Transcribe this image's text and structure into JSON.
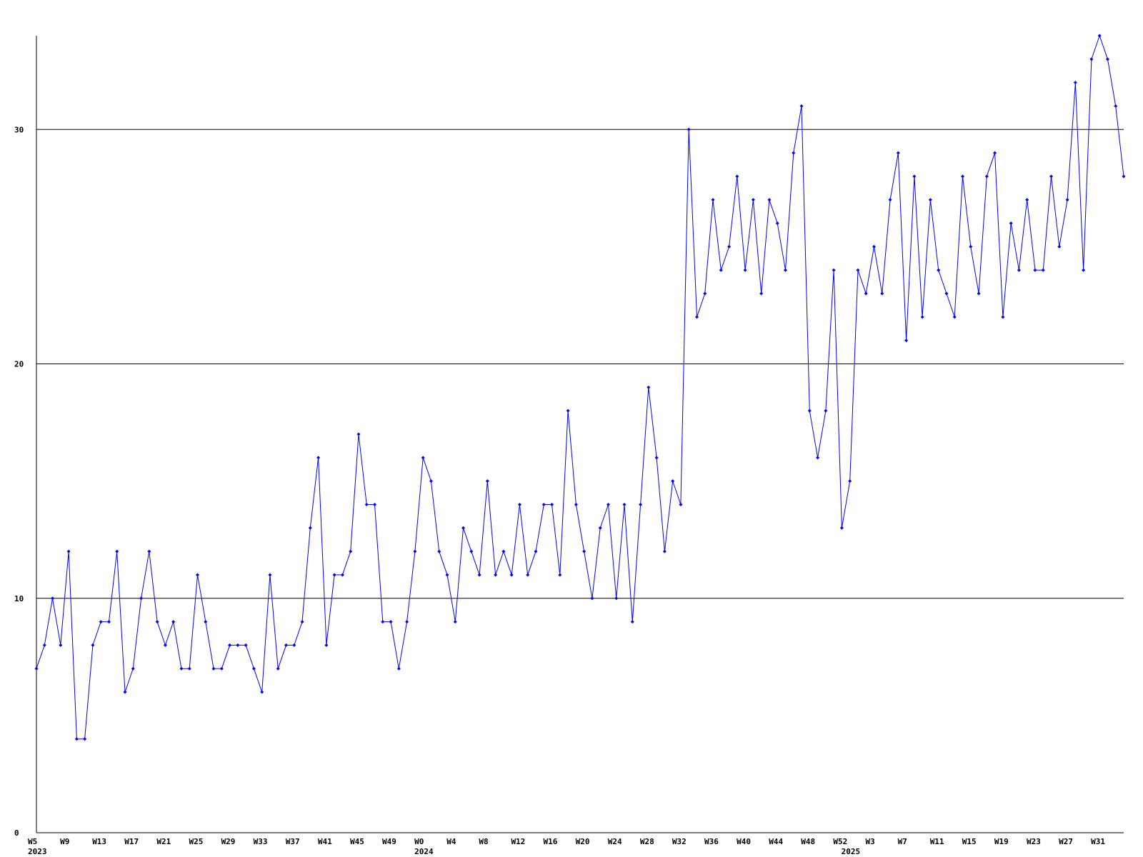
{
  "chart_data": {
    "type": "line",
    "categories": [
      "W5",
      null,
      null,
      null,
      "W9",
      null,
      null,
      null,
      "W13",
      null,
      null,
      null,
      "W17",
      null,
      null,
      null,
      "W21",
      null,
      null,
      null,
      "W25",
      null,
      null,
      null,
      "W29",
      null,
      null,
      null,
      "W33",
      null,
      null,
      null,
      "W37",
      null,
      null,
      null,
      "W41",
      null,
      null,
      null,
      "W45",
      null,
      null,
      null,
      "W49",
      null,
      null,
      null,
      "W0",
      null,
      null,
      null,
      "W4",
      null,
      null,
      null,
      "W8",
      null,
      null,
      null,
      "W12",
      null,
      null,
      null,
      "W16",
      null,
      null,
      null,
      "W20",
      null,
      null,
      null,
      "W24",
      null,
      null,
      null,
      "W28",
      null,
      null,
      null,
      "W32",
      null,
      null,
      null,
      "W36",
      null,
      null,
      null,
      "W40",
      null,
      null,
      null,
      "W44",
      null,
      null,
      null,
      "W48",
      null,
      null,
      null,
      "W52",
      null,
      null,
      null,
      "W3",
      null,
      null,
      null,
      "W7",
      null,
      null,
      null,
      "W11",
      null,
      null,
      null,
      "W15",
      null,
      null,
      null,
      "W19",
      null,
      null,
      null,
      "W23",
      null,
      null,
      null,
      "W27",
      null,
      null,
      null,
      "W31",
      null,
      null,
      null
    ],
    "category_years": [
      "2023",
      null,
      null,
      null,
      null,
      null,
      null,
      null,
      null,
      null,
      null,
      null,
      null,
      null,
      null,
      null,
      null,
      null,
      null,
      null,
      null,
      null,
      null,
      null,
      null,
      null,
      null,
      null,
      null,
      null,
      null,
      null,
      null,
      null,
      null,
      null,
      null,
      null,
      null,
      null,
      null,
      null,
      null,
      null,
      null,
      null,
      null,
      null,
      "2024",
      null,
      null,
      null,
      null,
      null,
      null,
      null,
      null,
      null,
      null,
      null,
      null,
      null,
      null,
      null,
      null,
      null,
      null,
      null,
      null,
      null,
      null,
      null,
      null,
      null,
      null,
      null,
      null,
      null,
      null,
      null,
      null,
      null,
      null,
      null,
      null,
      null,
      null,
      null,
      null,
      null,
      null,
      null,
      null,
      null,
      null,
      null,
      null,
      null,
      null,
      null,
      null,
      "2025",
      null,
      null,
      null,
      null,
      null,
      null,
      null,
      null,
      null,
      null,
      null,
      null,
      null,
      null,
      null,
      null,
      null,
      null,
      null,
      null,
      null,
      null,
      null,
      null,
      null,
      null,
      null,
      null,
      null,
      null,
      null,
      null,
      null,
      null
    ],
    "series": [
      {
        "color": "#0000ff",
        "values": [
          7,
          8,
          10,
          8,
          12,
          4,
          4,
          8,
          9,
          9,
          12,
          6,
          7,
          10,
          12,
          9,
          8,
          9,
          7,
          7,
          11,
          9,
          7,
          7,
          8,
          8,
          8,
          7,
          6,
          11,
          7,
          8,
          8,
          9,
          13,
          16,
          8,
          11,
          11,
          12,
          17,
          14,
          14,
          9,
          9,
          7,
          9,
          12,
          16,
          15,
          12,
          11,
          9,
          13,
          12,
          11,
          15,
          11,
          12,
          11,
          14,
          11,
          12,
          14,
          14,
          11,
          18,
          14,
          12,
          10,
          13,
          14,
          10,
          14,
          9,
          14,
          19,
          16,
          12,
          15,
          14,
          30,
          22,
          23,
          27,
          24,
          25,
          28,
          24,
          27,
          23,
          27,
          26,
          24,
          29,
          31,
          18,
          16,
          18,
          24,
          13,
          15,
          24,
          23,
          25,
          23,
          27,
          29,
          21,
          28,
          22,
          27,
          24,
          23,
          22,
          28,
          25,
          23,
          28,
          29,
          22,
          26,
          24,
          27,
          24,
          24,
          28,
          25,
          27,
          32,
          24,
          33,
          34,
          33,
          31,
          28
        ]
      }
    ],
    "ylim": [
      0,
      34
    ],
    "yticks": [
      0,
      10,
      20,
      30
    ],
    "grid": true
  }
}
